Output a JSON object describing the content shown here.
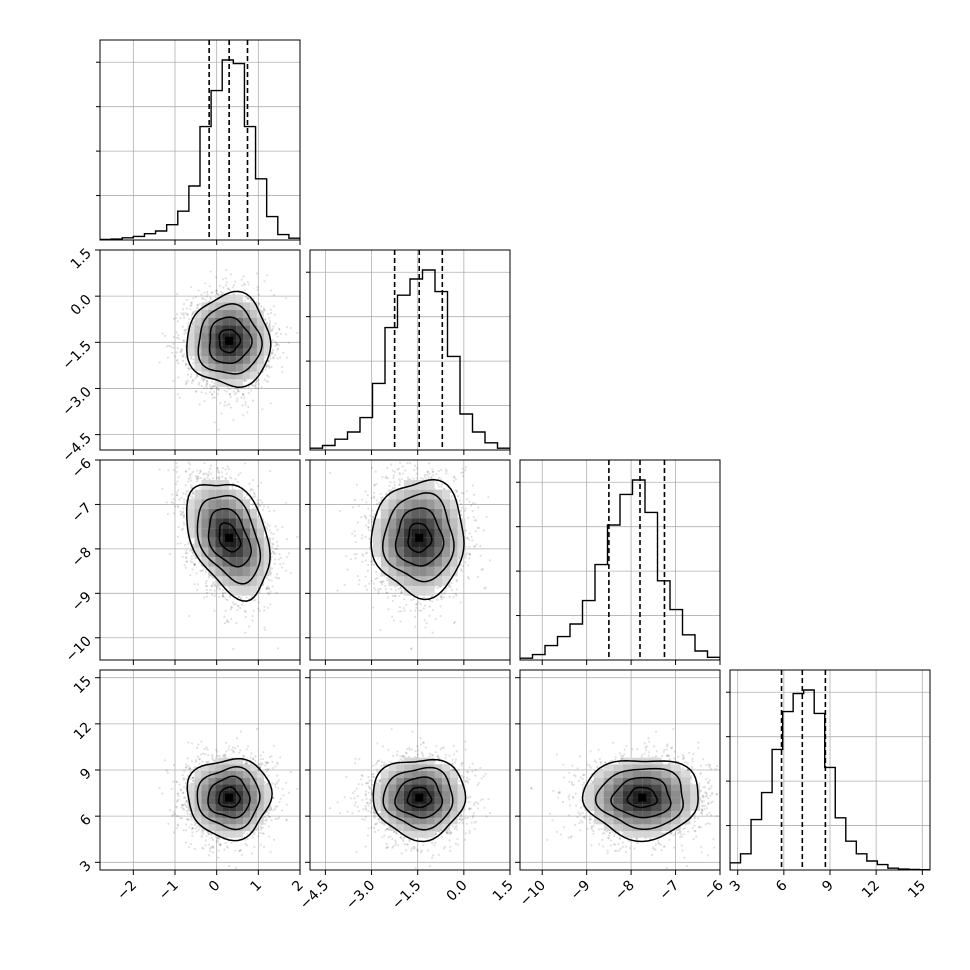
{
  "chart_data": {
    "type": "corner",
    "grid": true,
    "quantiles": [
      0.16,
      0.5,
      0.84
    ],
    "params": [
      {
        "mean": 0.3,
        "std": 0.5,
        "range": [
          -2.8,
          2.0
        ],
        "ticks": [
          -2,
          -1,
          0,
          1,
          2
        ],
        "tick_labels": [
          "−2",
          "−1",
          "0",
          "1",
          "2"
        ],
        "quantile_values": [
          -0.18,
          0.3,
          0.74
        ]
      },
      {
        "mean": -1.45,
        "std": 0.75,
        "range": [
          -5.0,
          1.5
        ],
        "ticks": [
          -4.5,
          -3.0,
          -1.5,
          0.0,
          1.5
        ],
        "tick_labels": [
          "−4.5",
          "−3.0",
          "−1.5",
          "0.0",
          "1.5"
        ],
        "quantile_values": [
          -2.25,
          -1.45,
          -0.7
        ]
      },
      {
        "mean": -7.75,
        "std": 0.65,
        "range": [
          -10.5,
          -6.0
        ],
        "ticks": [
          -10,
          -9,
          -8,
          -7,
          -6
        ],
        "tick_labels": [
          "−10",
          "−9",
          "−8",
          "−7",
          "−6"
        ],
        "quantile_values": [
          -8.5,
          -7.8,
          -7.25
        ]
      },
      {
        "mean": 7.2,
        "std": 1.3,
        "range": [
          2.5,
          15.5
        ],
        "ticks": [
          3,
          6,
          9,
          12,
          15
        ],
        "tick_labels": [
          "3",
          "6",
          "9",
          "12",
          "15"
        ],
        "quantile_values": [
          5.85,
          7.2,
          8.7
        ]
      }
    ],
    "correlations": [
      [
        1.0,
        0.0,
        -0.35,
        0.0
      ],
      [
        0.0,
        1.0,
        0.0,
        0.0
      ],
      [
        -0.35,
        0.0,
        1.0,
        0.0
      ],
      [
        0.0,
        0.0,
        0.0,
        1.0
      ]
    ],
    "histograms": [
      [
        0.003,
        0.005,
        0.012,
        0.02,
        0.035,
        0.05,
        0.085,
        0.16,
        0.3,
        0.63,
        0.83,
        1.0,
        0.98,
        0.63,
        0.34,
        0.13,
        0.03,
        0.01
      ],
      [
        0.01,
        0.025,
        0.06,
        0.1,
        0.18,
        0.37,
        0.68,
        0.86,
        0.95,
        1.0,
        0.88,
        0.52,
        0.2,
        0.1,
        0.04,
        0.01
      ],
      [
        0.01,
        0.03,
        0.08,
        0.13,
        0.2,
        0.33,
        0.53,
        0.75,
        0.92,
        1.0,
        0.82,
        0.44,
        0.28,
        0.14,
        0.05,
        0.015
      ],
      [
        0.04,
        0.09,
        0.28,
        0.43,
        0.67,
        0.88,
        0.98,
        1.0,
        0.87,
        0.57,
        0.29,
        0.16,
        0.09,
        0.05,
        0.03,
        0.01,
        0.005,
        0.003,
        0.002
      ]
    ]
  }
}
